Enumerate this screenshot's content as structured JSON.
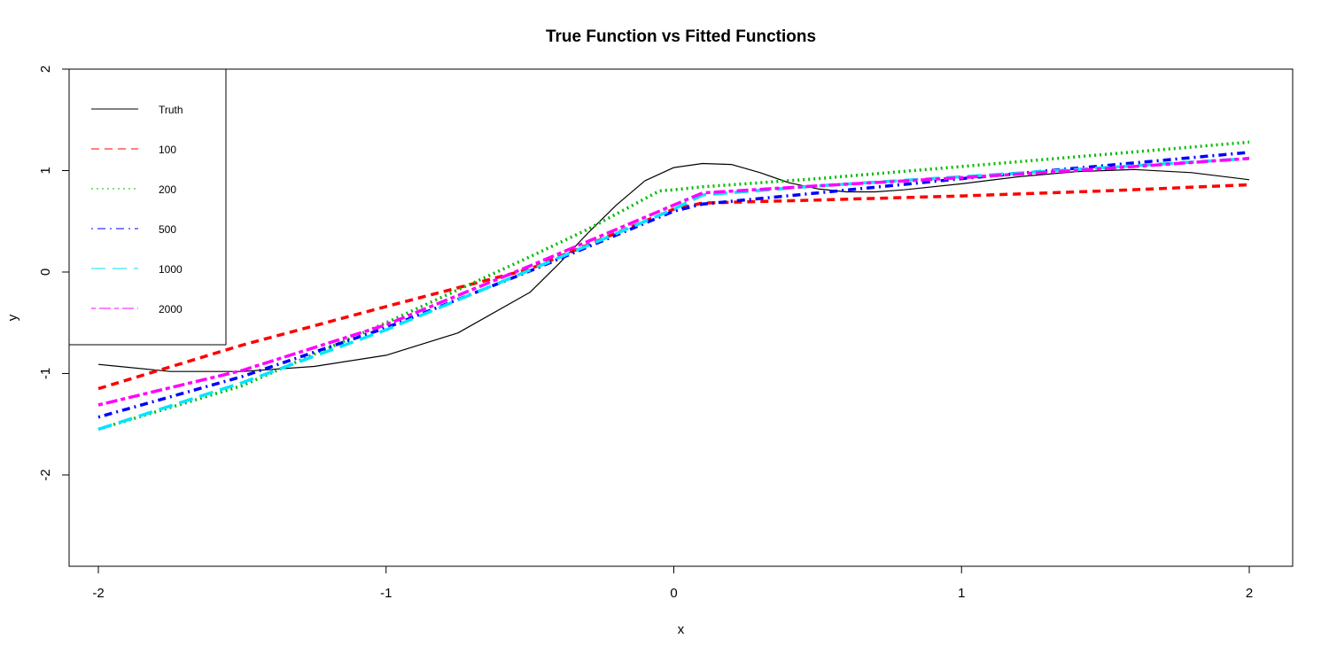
{
  "chart_data": {
    "type": "line",
    "title": "True Function vs Fitted Functions",
    "xlabel": "x",
    "ylabel": "y",
    "xlim": [
      -2,
      2
    ],
    "ylim": [
      -2.9,
      2.0
    ],
    "xticks": [
      -2,
      -1,
      0,
      1,
      2
    ],
    "xtick_labels": [
      "-2",
      "-1",
      "0",
      "1",
      "2"
    ],
    "yticks": [
      -2,
      -1,
      0,
      1,
      2
    ],
    "ytick_labels": [
      "-2",
      "-1",
      "0",
      "1",
      "2"
    ],
    "grid": false,
    "legend_position": "top-left",
    "series": [
      {
        "name": "Truth",
        "color": "#000000",
        "dash": "solid",
        "x": [
          -2.0,
          -1.75,
          -1.5,
          -1.25,
          -1.0,
          -0.75,
          -0.5,
          -0.4,
          -0.3,
          -0.2,
          -0.1,
          0.0,
          0.1,
          0.2,
          0.3,
          0.4,
          0.5,
          0.6,
          0.7,
          0.8,
          1.0,
          1.2,
          1.4,
          1.6,
          1.8,
          2.0
        ],
        "y": [
          -0.91,
          -0.98,
          -0.98,
          -0.93,
          -0.82,
          -0.6,
          -0.2,
          0.08,
          0.38,
          0.66,
          0.9,
          1.03,
          1.07,
          1.06,
          0.98,
          0.88,
          0.82,
          0.79,
          0.79,
          0.81,
          0.87,
          0.94,
          0.99,
          1.01,
          0.98,
          0.91
        ]
      },
      {
        "name": "100",
        "color": "#ff0000",
        "dash": "dashed",
        "x": [
          -2.0,
          -1.5,
          -1.0,
          -0.5,
          0.0,
          0.1,
          0.5,
          1.0,
          1.5,
          2.0
        ],
        "y": [
          -1.15,
          -0.72,
          -0.34,
          0.03,
          0.62,
          0.68,
          0.71,
          0.75,
          0.8,
          0.86
        ]
      },
      {
        "name": "200",
        "color": "#00bb00",
        "dash": "dotted",
        "x": [
          -2.0,
          -1.5,
          -1.0,
          -0.5,
          -0.3,
          -0.05,
          0.0,
          0.1,
          0.5,
          1.0,
          1.5,
          2.0
        ],
        "y": [
          -1.55,
          -1.12,
          -0.5,
          0.15,
          0.42,
          0.8,
          0.81,
          0.84,
          0.92,
          1.04,
          1.16,
          1.28
        ]
      },
      {
        "name": "500",
        "color": "#0000ff",
        "dash": "dotdash",
        "x": [
          -2.0,
          -1.5,
          -1.0,
          -0.5,
          0.0,
          0.1,
          0.5,
          1.0,
          1.5,
          2.0
        ],
        "y": [
          -1.43,
          -1.03,
          -0.55,
          0.01,
          0.6,
          0.67,
          0.78,
          0.92,
          1.05,
          1.18
        ]
      },
      {
        "name": "1000",
        "color": "#00e5ff",
        "dash": "longdash",
        "x": [
          -2.0,
          -1.5,
          -1.0,
          -0.5,
          0.0,
          0.1,
          0.5,
          1.0,
          1.5,
          2.0
        ],
        "y": [
          -1.55,
          -1.09,
          -0.57,
          0.02,
          0.62,
          0.76,
          0.85,
          0.94,
          1.03,
          1.12
        ]
      },
      {
        "name": "2000",
        "color": "#ff00ff",
        "dash": "twodash",
        "x": [
          -2.0,
          -1.5,
          -1.0,
          -0.5,
          0.0,
          0.1,
          0.5,
          1.0,
          1.5,
          2.0
        ],
        "y": [
          -1.31,
          -0.97,
          -0.52,
          0.06,
          0.66,
          0.78,
          0.85,
          0.93,
          1.02,
          1.12
        ]
      }
    ]
  }
}
